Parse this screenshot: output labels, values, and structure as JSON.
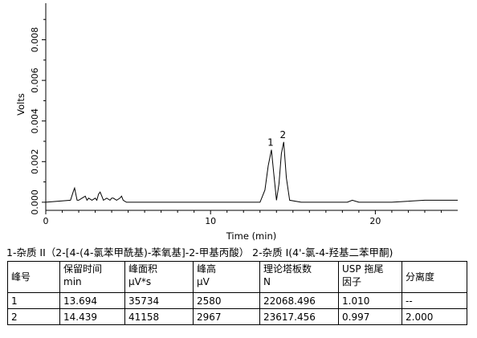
{
  "chart_data": {
    "type": "line",
    "xlabel": "Time (min)",
    "ylabel": "Volts",
    "xlim": [
      0,
      25
    ],
    "ylim": [
      -0.0004,
      0.0098
    ],
    "xticks": [
      0,
      10,
      20
    ],
    "yticks": [
      0.0,
      0.002,
      0.004,
      0.006,
      0.008
    ],
    "ytick_labels": [
      "0.000",
      "0.002",
      "0.004",
      "0.006",
      "0.008"
    ],
    "grid": false,
    "series": [
      {
        "x": [
          0.0,
          1.5,
          1.7,
          1.75,
          1.8,
          1.9,
          2.0,
          2.2,
          2.4,
          2.5,
          2.6,
          2.8,
          3.0,
          3.1,
          3.2,
          3.3,
          3.4,
          3.5,
          3.7,
          3.9,
          4.0,
          4.1,
          4.3,
          4.5,
          4.6,
          4.7,
          4.9,
          5.5,
          7.0,
          9.0,
          11.0,
          13.0,
          13.3,
          13.5,
          13.694,
          13.85,
          14.0,
          14.15,
          14.3,
          14.439,
          14.6,
          14.8,
          15.5,
          17.0,
          18.3,
          18.6,
          19.0,
          21.0,
          23.0,
          25.0
        ],
        "y": [
          0.0,
          0.0001,
          0.0006,
          0.0007,
          0.0005,
          0.0001,
          0.0001,
          0.0002,
          0.0003,
          0.0001,
          0.0002,
          0.0001,
          0.0002,
          0.0001,
          0.0004,
          0.0005,
          0.0003,
          0.0001,
          0.0002,
          0.0001,
          0.0002,
          0.0002,
          0.0001,
          0.0002,
          0.0003,
          0.0001,
          0.0,
          0.0,
          0.0,
          0.0,
          0.0,
          0.0,
          0.0006,
          0.0018,
          0.00258,
          0.0013,
          0.0001,
          0.0009,
          0.0024,
          0.002967,
          0.0012,
          0.0001,
          0.0,
          0.0,
          0.0,
          0.0001,
          0.0,
          0.0,
          0.0001,
          0.0001
        ]
      }
    ],
    "peak_labels": [
      {
        "label": "1",
        "x": 13.694,
        "y": 0.00258
      },
      {
        "label": "2",
        "x": 14.439,
        "y": 0.002967
      }
    ]
  },
  "caption": "1-杂质 II（2-[4-(4-氯苯甲酰基)-苯氧基]-2-甲基丙酸）   2-杂质 I(4'-氯-4-羟基二苯甲酮)",
  "table": {
    "headers": [
      [
        "峰号",
        ""
      ],
      [
        "保留时间",
        "min"
      ],
      [
        "峰面积",
        "μV*s"
      ],
      [
        "峰高",
        "μV"
      ],
      [
        "理论塔板数",
        "N"
      ],
      [
        "USP 拖尾",
        "因子"
      ],
      [
        "分离度",
        ""
      ]
    ],
    "rows": [
      [
        "1",
        "13.694",
        "35734",
        "2580",
        "22068.496",
        "1.010",
        "--"
      ],
      [
        "2",
        "14.439",
        "41158",
        "2967",
        "23617.456",
        "0.997",
        "2.000"
      ]
    ]
  }
}
